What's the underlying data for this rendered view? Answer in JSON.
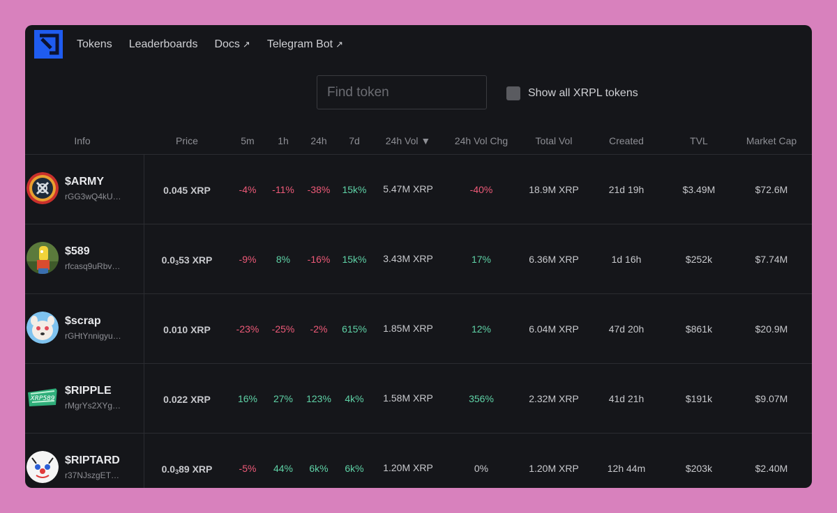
{
  "nav": {
    "links": [
      {
        "label": "Tokens",
        "external": false
      },
      {
        "label": "Leaderboards",
        "external": false
      },
      {
        "label": "Docs",
        "external": true
      },
      {
        "label": "Telegram Bot",
        "external": true
      }
    ],
    "external_arrow": "↗"
  },
  "search": {
    "placeholder": "Find token",
    "value": ""
  },
  "show_all": {
    "label": "Show all XRPL tokens",
    "checked": false
  },
  "table": {
    "headers": [
      "Info",
      "Price",
      "5m",
      "1h",
      "24h",
      "7d",
      "24h Vol ▼",
      "24h Vol Chg",
      "Total Vol",
      "Created",
      "TVL",
      "Market Cap"
    ],
    "rows": [
      {
        "name": "$ARMY",
        "address": "rGG3wQ4kU…",
        "price": "0.045 XRP",
        "price_sub": "",
        "price_tail": "",
        "m5": "-4%",
        "h1": "-11%",
        "h24": "-38%",
        "d7": "15k%",
        "vol24": "5.47M XRP",
        "volchg": "-40%",
        "totalvol": "18.9M XRP",
        "created": "21d 19h",
        "tvl": "$3.49M",
        "mcap": "$72.6M",
        "avatar_icon": "army-avatar-icon"
      },
      {
        "name": "$589",
        "address": "rfcasq9uRbv…",
        "price": "0.0",
        "price_sub": "3",
        "price_tail": "53 XRP",
        "m5": "-9%",
        "h1": "8%",
        "h24": "-16%",
        "d7": "15k%",
        "vol24": "3.43M XRP",
        "volchg": "17%",
        "totalvol": "6.36M XRP",
        "created": "1d 16h",
        "tvl": "$252k",
        "mcap": "$7.74M",
        "avatar_icon": "cartoon-avatar-icon"
      },
      {
        "name": "$scrap",
        "address": "rGHtYnnigyu…",
        "price": "0.010 XRP",
        "price_sub": "",
        "price_tail": "",
        "m5": "-23%",
        "h1": "-25%",
        "h24": "-2%",
        "d7": "615%",
        "vol24": "1.85M XRP",
        "volchg": "12%",
        "totalvol": "6.04M XRP",
        "created": "47d 20h",
        "tvl": "$861k",
        "mcap": "$20.9M",
        "avatar_icon": "dog-avatar-icon"
      },
      {
        "name": "$RIPPLE",
        "address": "rMgrYs2XYg…",
        "price": "0.022 XRP",
        "price_sub": "",
        "price_tail": "",
        "m5": "16%",
        "h1": "27%",
        "h24": "123%",
        "d7": "4k%",
        "vol24": "1.58M XRP",
        "volchg": "356%",
        "totalvol": "2.32M XRP",
        "created": "41d 21h",
        "tvl": "$191k",
        "mcap": "$9.07M",
        "avatar_icon": "xrp589-avatar-icon"
      },
      {
        "name": "$RIPTARD",
        "address": "r37NJszgET…",
        "price": "0.0",
        "price_sub": "3",
        "price_tail": "89 XRP",
        "m5": "-5%",
        "h1": "44%",
        "h24": "6k%",
        "d7": "6k%",
        "vol24": "1.20M XRP",
        "volchg": "0%",
        "totalvol": "1.20M XRP",
        "created": "12h 44m",
        "tvl": "$203k",
        "mcap": "$2.40M",
        "avatar_icon": "clown-avatar-icon"
      }
    ]
  },
  "colors": {
    "accent": "#1f5cf0",
    "negative": "#ee5a78",
    "positive": "#5fd3a7",
    "background": "#15161a",
    "page": "#d881bd"
  }
}
